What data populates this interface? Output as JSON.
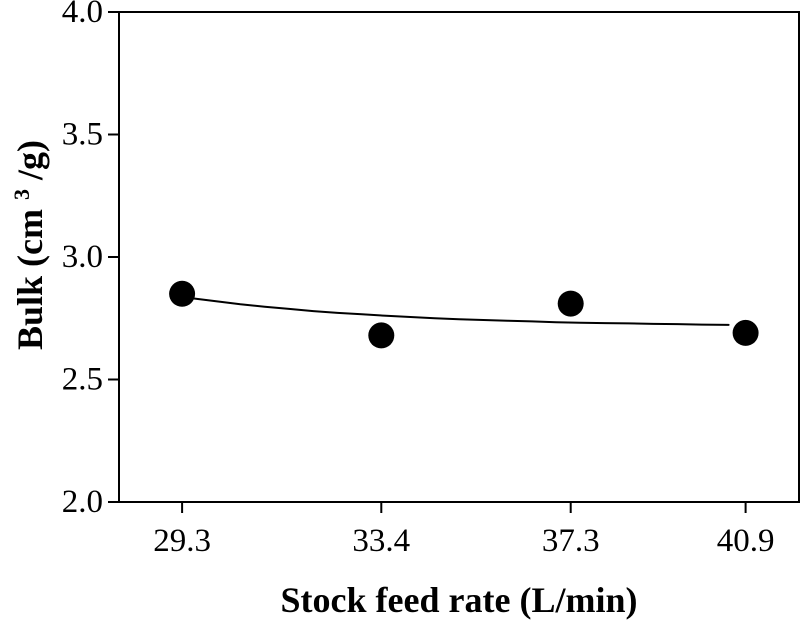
{
  "figure": {
    "background_color": "#ffffff",
    "ink_color": "#000000"
  },
  "chart_data": {
    "type": "scatter",
    "title": "",
    "xlabel": "Stock feed rate (L/min)",
    "ylabel": "Bulk (cm³/g)",
    "ylabel_parts": {
      "prefix": "Bulk (cm",
      "superscript": "3",
      "suffix": "/g)"
    },
    "series": [
      {
        "name": "bulk",
        "x": [
          29.3,
          33.4,
          37.3,
          40.9
        ],
        "y": [
          2.85,
          2.68,
          2.81,
          2.69
        ]
      }
    ],
    "trend_line": {
      "style": "solid",
      "color": "#000000",
      "x": [
        29.5,
        30.0,
        30.5,
        31.0,
        31.5,
        32.0,
        32.5,
        33.0,
        33.5,
        34.0,
        34.5,
        35.0,
        35.5,
        36.0,
        36.5,
        37.0,
        37.5,
        38.0,
        38.5,
        39.0,
        39.5,
        40.0,
        40.55
      ],
      "y": [
        2.832,
        2.819,
        2.807,
        2.797,
        2.788,
        2.779,
        2.772,
        2.766,
        2.76,
        2.755,
        2.75,
        2.746,
        2.743,
        2.74,
        2.737,
        2.734,
        2.732,
        2.73,
        2.729,
        2.727,
        2.726,
        2.724,
        2.723
      ]
    },
    "xticks": [
      29.3,
      33.4,
      37.3,
      40.9
    ],
    "xtick_labels": [
      "29.3",
      "33.4",
      "37.3",
      "40.9"
    ],
    "yticks": [
      2.0,
      2.5,
      3.0,
      3.5,
      4.0
    ],
    "ytick_labels": [
      "2.0",
      "2.5",
      "3.0",
      "3.5",
      "4.0"
    ],
    "xlim": [
      28,
      42
    ],
    "ylim": [
      2.0,
      4.0
    ],
    "grid": false,
    "legend": null,
    "marker": {
      "shape": "circle",
      "color": "#000000",
      "radius_px": 13
    }
  }
}
